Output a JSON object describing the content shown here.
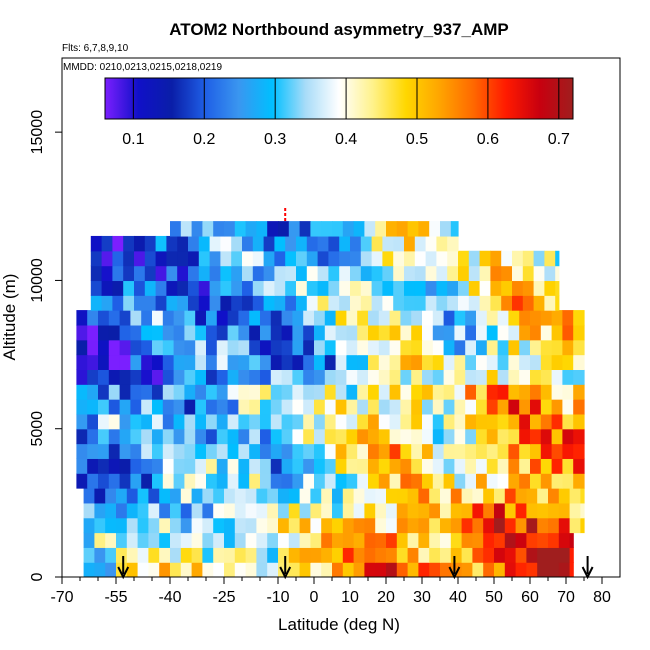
{
  "chart_data": {
    "type": "heatmap",
    "title": "ATOM2 Northbound asymmetry_937_AMP",
    "flights_label": "Flts: 6,7,8,9,10",
    "dates_label": "MMDD: 0210,0213,0215,0218,0219",
    "xlabel": "Latitude (deg N)",
    "ylabel": "Altitude (m)",
    "xlim": [
      -70,
      85
    ],
    "ylim": [
      0,
      17500
    ],
    "x_ticks": [
      -70,
      -55,
      -40,
      -25,
      -10,
      0,
      10,
      20,
      30,
      40,
      50,
      60,
      70,
      80
    ],
    "x_ticks_minor": [
      -65,
      -60,
      -50,
      -45,
      -35,
      -30,
      -20,
      -15,
      -5,
      5,
      15,
      25,
      35,
      45,
      55,
      65,
      75
    ],
    "x_tick_labels": [
      "-70",
      "-55",
      "-40",
      "-25",
      "-10",
      "0",
      "10",
      "20",
      "30",
      "40",
      "50",
      "60",
      "70",
      "80"
    ],
    "y_ticks": [
      0,
      5000,
      10000,
      15000
    ],
    "y_tick_labels": [
      "0",
      "5000",
      "10000",
      "15000"
    ],
    "colorbar": {
      "range": [
        0.06,
        0.72
      ],
      "ticks": [
        0.1,
        0.2,
        0.3,
        0.4,
        0.5,
        0.6,
        0.7
      ],
      "tick_labels": [
        "0.1",
        "0.2",
        "0.3",
        "0.4",
        "0.5",
        "0.6",
        "0.7"
      ],
      "colors": [
        "#7b1fff",
        "#1010c8",
        "#0a1ea8",
        "#1f5fe6",
        "#3a96f0",
        "#00bfff",
        "#a8dcf8",
        "#ffffff",
        "#fff28c",
        "#ffd700",
        "#ffa500",
        "#ff6a00",
        "#ff1a00",
        "#c8000f",
        "#a01e1e"
      ]
    },
    "latitude_bands": [
      {
        "lat": [
          -65,
          -55
        ],
        "value": 0.22
      },
      {
        "lat": [
          -55,
          -45
        ],
        "value": 0.28
      },
      {
        "lat": [
          -45,
          -35
        ],
        "value": 0.31
      },
      {
        "lat": [
          -35,
          -25
        ],
        "value": 0.3
      },
      {
        "lat": [
          -25,
          -15
        ],
        "value": 0.33
      },
      {
        "lat": [
          -15,
          -5
        ],
        "value": 0.31
      },
      {
        "lat": [
          -5,
          5
        ],
        "value": 0.36
      },
      {
        "lat": [
          5,
          15
        ],
        "value": 0.42
      },
      {
        "lat": [
          15,
          25
        ],
        "value": 0.48
      },
      {
        "lat": [
          25,
          35
        ],
        "value": 0.46
      },
      {
        "lat": [
          35,
          45
        ],
        "value": 0.4
      },
      {
        "lat": [
          45,
          55
        ],
        "value": 0.5
      },
      {
        "lat": [
          55,
          65
        ],
        "value": 0.55
      },
      {
        "lat": [
          65,
          75
        ],
        "value": 0.52
      }
    ],
    "profile_arrows_lat": [
      -53,
      -8,
      39,
      76
    ],
    "flagged_marker_lat": -8
  }
}
